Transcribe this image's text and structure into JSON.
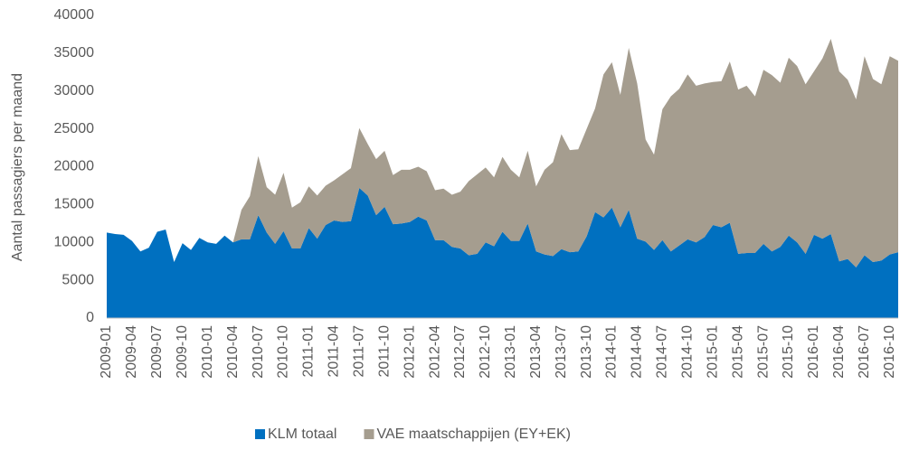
{
  "chart_data": {
    "type": "stacked_area",
    "y_label": "Aantal passagiers per maand",
    "categories": [
      "2009-01",
      null,
      null,
      "2009-04",
      null,
      null,
      "2009-07",
      null,
      null,
      "2009-10",
      null,
      null,
      "2010-01",
      null,
      null,
      "2010-04",
      null,
      null,
      "2010-07",
      null,
      null,
      "2010-10",
      null,
      null,
      "2011-01",
      null,
      null,
      "2011-04",
      null,
      null,
      "2011-07",
      null,
      null,
      "2011-10",
      null,
      null,
      "2012-01",
      null,
      null,
      "2012-04",
      null,
      null,
      "2012-07",
      null,
      null,
      "2012-10",
      null,
      null,
      "2013-01",
      null,
      null,
      "2013-04",
      null,
      null,
      "2013-07",
      null,
      null,
      "2013-10",
      null,
      null,
      "2014-01",
      null,
      null,
      "2014-04",
      null,
      null,
      "2014-07",
      null,
      null,
      "2014-10",
      null,
      null,
      "2015-01",
      null,
      null,
      "2015-04",
      null,
      null,
      "2015-07",
      null,
      null,
      "2015-10",
      null,
      null,
      "2016-01",
      null,
      null,
      "2016-04",
      null,
      null,
      "2016-07",
      null,
      null,
      "2016-10",
      null
    ],
    "series": [
      {
        "name": "KLM totaal",
        "color": "#0070c0",
        "values": [
          11300,
          11100,
          11000,
          10200,
          8800,
          9300,
          11400,
          11700,
          7400,
          9900,
          9000,
          10600,
          10000,
          9800,
          10900,
          10000,
          10400,
          10400,
          13600,
          11300,
          9800,
          11500,
          9200,
          9200,
          11900,
          10500,
          12300,
          12900,
          12700,
          12800,
          17200,
          16200,
          13600,
          14700,
          12400,
          12500,
          12700,
          13400,
          12900,
          10300,
          10300,
          9400,
          9200,
          8300,
          8500,
          10000,
          9500,
          11400,
          10200,
          10200,
          12500,
          8800,
          8400,
          8200,
          9100,
          8700,
          8800,
          10800,
          14000,
          13300,
          14600,
          12000,
          14300,
          10500,
          10100,
          9000,
          10300,
          8800,
          9600,
          10400,
          10000,
          10700,
          12300,
          12000,
          12600,
          8500,
          8600,
          8600,
          9800,
          8800,
          9400,
          10900,
          10000,
          8500,
          11000,
          10500,
          11100,
          7500,
          7800,
          6700,
          8300,
          7400,
          7600,
          8400,
          8700
        ]
      },
      {
        "name": "VAE maatschappijen (EY+EK)",
        "color": "#a59d8f",
        "values": [
          0,
          0,
          0,
          0,
          0,
          0,
          0,
          0,
          0,
          0,
          0,
          0,
          0,
          0,
          0,
          0,
          3900,
          5700,
          7800,
          6000,
          6500,
          7700,
          5400,
          6100,
          5500,
          5700,
          5200,
          5300,
          6300,
          7000,
          7900,
          6800,
          7400,
          7400,
          6500,
          7100,
          6900,
          6600,
          6500,
          6600,
          6800,
          6900,
          7500,
          9800,
          10500,
          9900,
          9100,
          9900,
          9400,
          8400,
          9600,
          8600,
          11200,
          12400,
          15200,
          13500,
          13500,
          14200,
          13700,
          18900,
          19200,
          17500,
          21400,
          20500,
          13500,
          12600,
          17300,
          20500,
          20700,
          21800,
          20700,
          20300,
          18900,
          19300,
          21300,
          21700,
          22100,
          20700,
          23000,
          23300,
          21700,
          23500,
          23300,
          22400,
          21600,
          23800,
          25800,
          25100,
          23700,
          22200,
          26300,
          24200,
          23300,
          26200,
          25300
        ]
      }
    ],
    "ylim": [
      0,
      40000
    ],
    "yticks": [
      0,
      5000,
      10000,
      15000,
      20000,
      25000,
      30000,
      35000,
      40000
    ],
    "grid": false,
    "legend": "bottom"
  }
}
